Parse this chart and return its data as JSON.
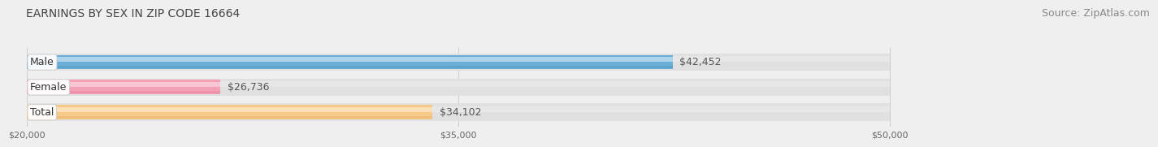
{
  "title": "EARNINGS BY SEX IN ZIP CODE 16664",
  "source": "Source: ZipAtlas.com",
  "categories": [
    "Male",
    "Female",
    "Total"
  ],
  "values": [
    42452,
    26736,
    34102
  ],
  "bar_colors": [
    "#6aaed6",
    "#f4a0b5",
    "#f5c98a"
  ],
  "bar_colors_light": [
    "#c5e2f2",
    "#fad4e0",
    "#fce8c5"
  ],
  "bar_colors_dark": [
    "#4a8fc0",
    "#e07898",
    "#e8a860"
  ],
  "value_labels": [
    "$42,452",
    "$26,736",
    "$34,102"
  ],
  "xmin": 20000,
  "xmax": 50000,
  "xticks": [
    20000,
    35000,
    50000
  ],
  "xtick_labels": [
    "$20,000",
    "$35,000",
    "$50,000"
  ],
  "background_color": "#efefef",
  "title_fontsize": 10,
  "source_fontsize": 9,
  "label_fontsize": 9,
  "value_fontsize": 9
}
